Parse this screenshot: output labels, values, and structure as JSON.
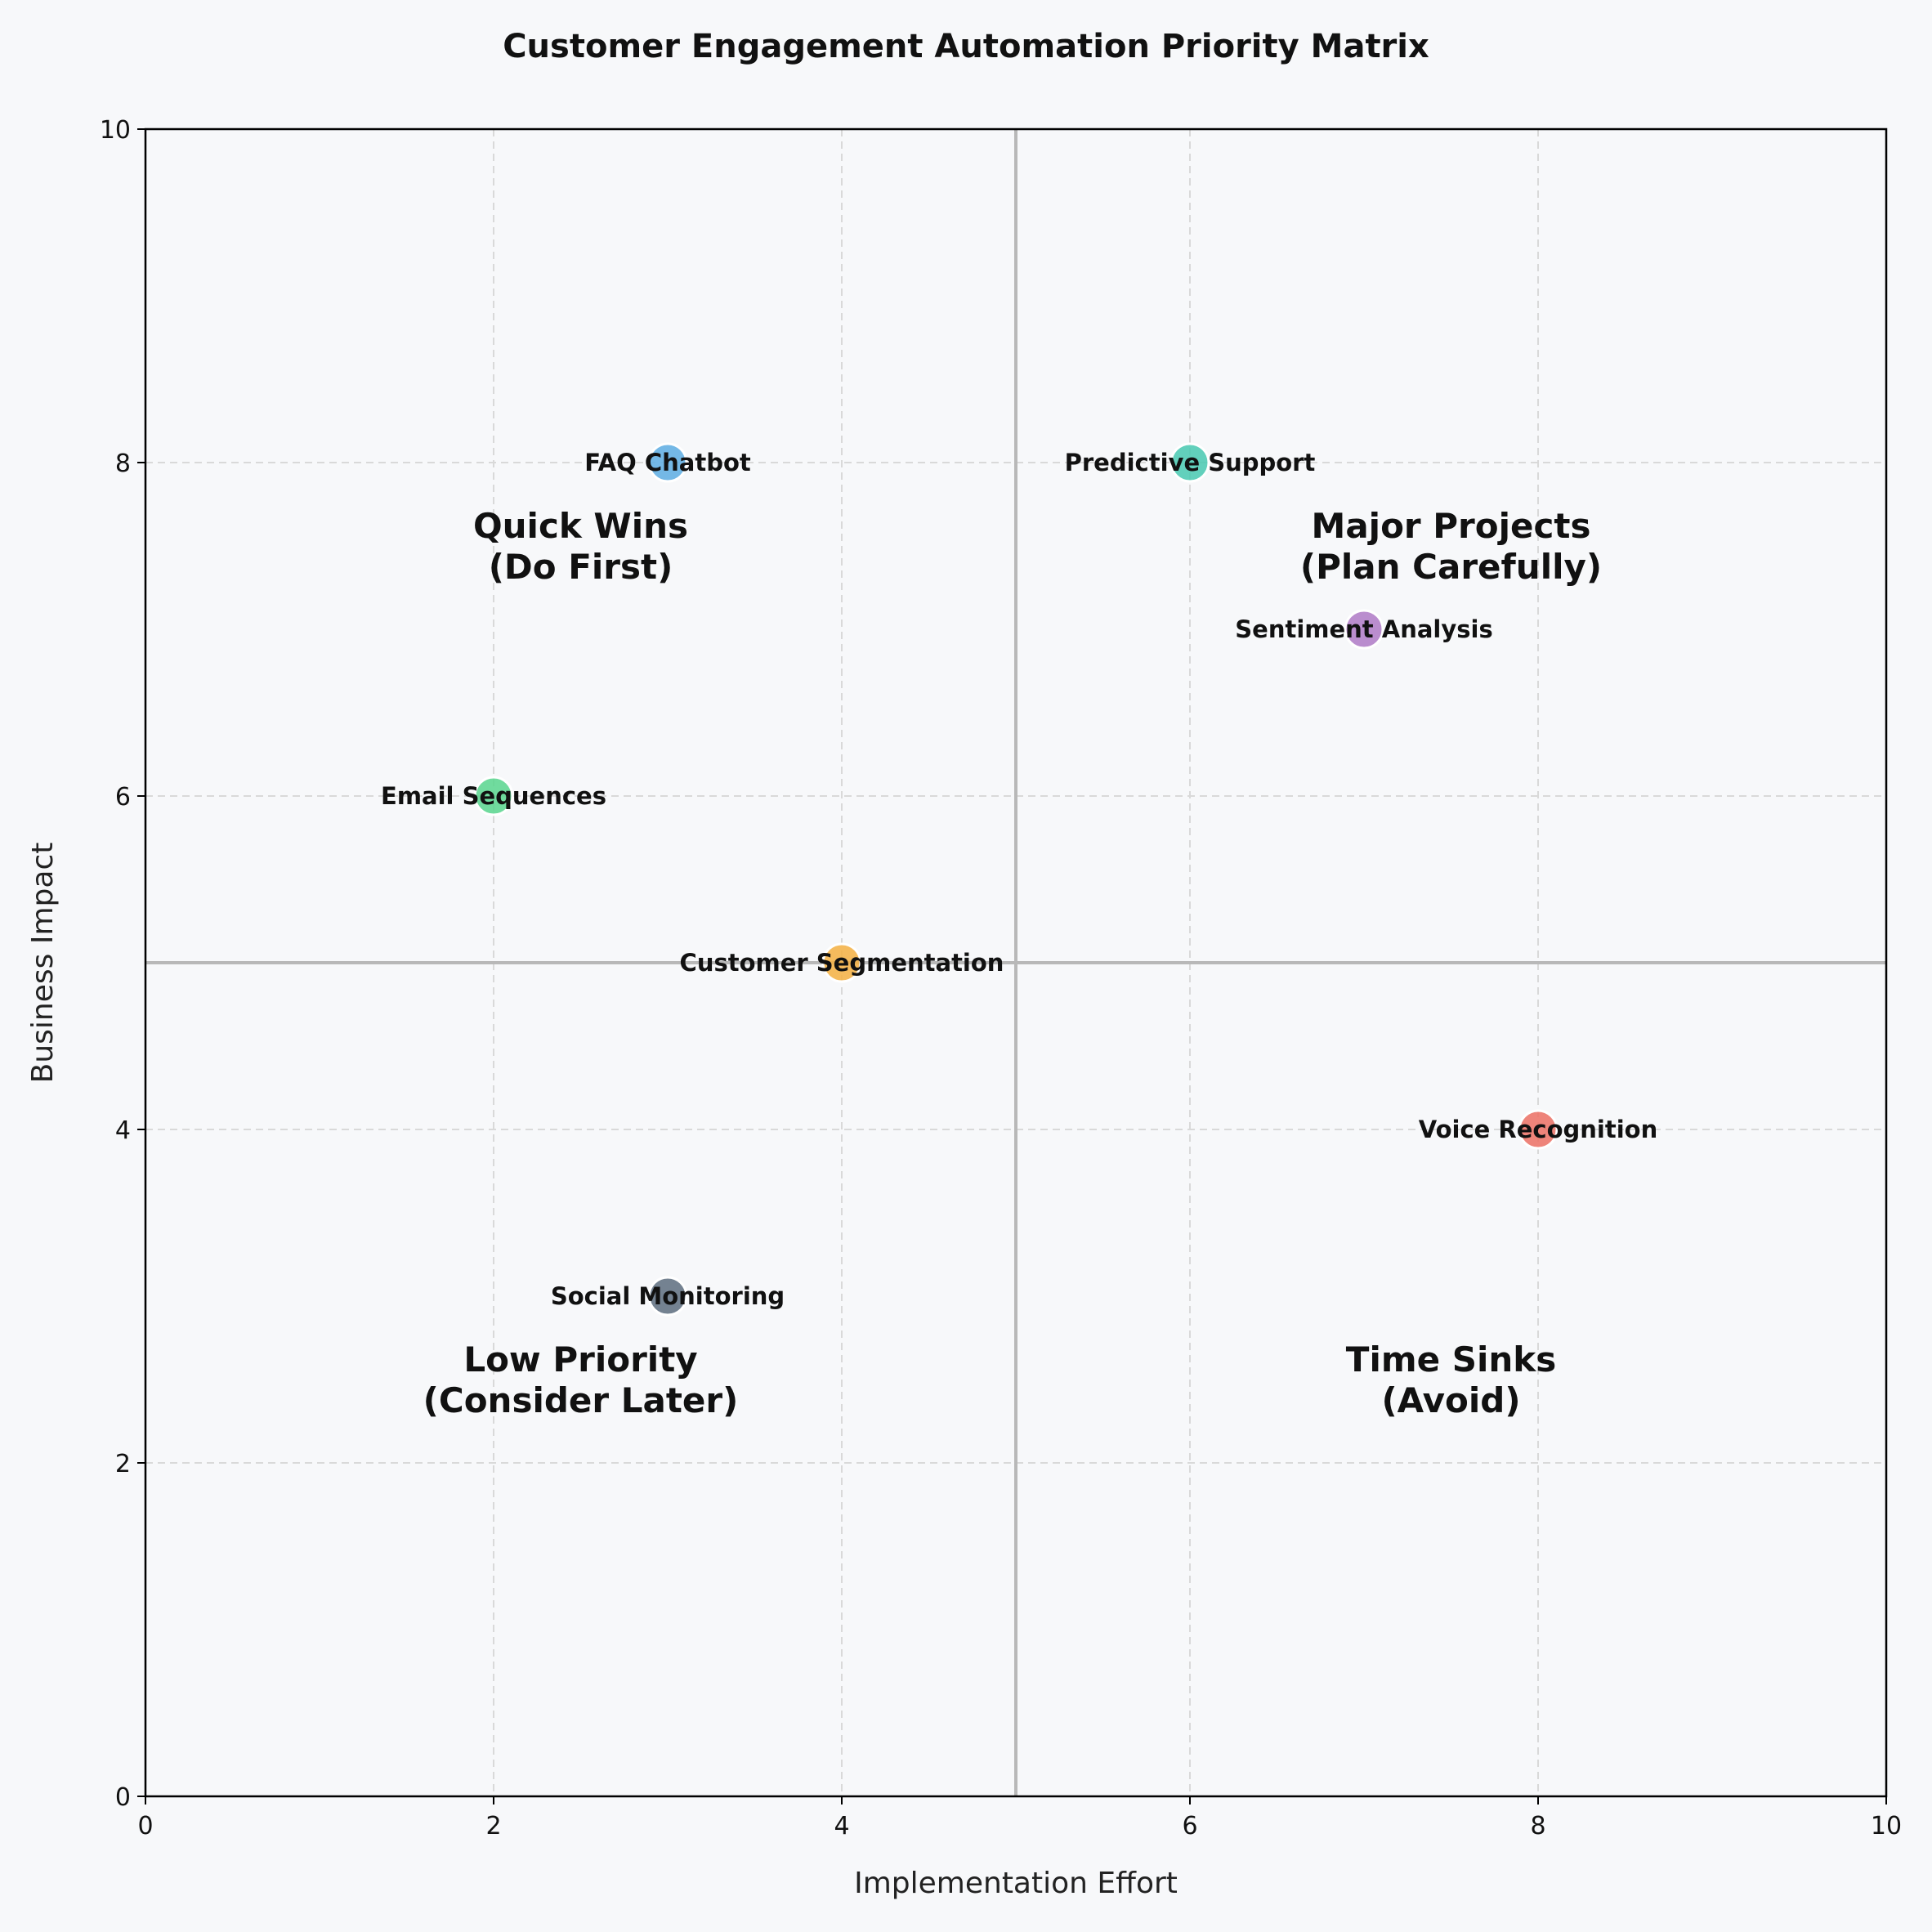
{
  "chart_data": {
    "type": "scatter",
    "title": "Customer Engagement Automation Priority Matrix",
    "xlabel": "Implementation Effort",
    "ylabel": "Business Impact",
    "xlim": [
      0,
      10
    ],
    "ylim": [
      0,
      10
    ],
    "xticks": [
      "0",
      "2",
      "4",
      "6",
      "8",
      "10"
    ],
    "yticks": [
      "0",
      "2",
      "4",
      "6",
      "8",
      "10"
    ],
    "grid": true,
    "dividers": {
      "x": 5,
      "y": 5
    },
    "points": [
      {
        "label": "FAQ Chatbot",
        "x": 3,
        "y": 8,
        "color": "#5dade2"
      },
      {
        "label": "Predictive Support",
        "x": 6,
        "y": 8,
        "color": "#48c9b0"
      },
      {
        "label": "Sentiment Analysis",
        "x": 7,
        "y": 7,
        "color": "#af7ac5"
      },
      {
        "label": "Email Sequences",
        "x": 2,
        "y": 6,
        "color": "#58d68d"
      },
      {
        "label": "Customer Segmentation",
        "x": 4,
        "y": 5,
        "color": "#f5b041"
      },
      {
        "label": "Voice Recognition",
        "x": 8,
        "y": 4,
        "color": "#ec7063"
      },
      {
        "label": "Social Monitoring",
        "x": 3,
        "y": 3,
        "color": "#5d6d7e"
      }
    ],
    "quadrants": [
      {
        "line1": "Quick Wins",
        "line2": "(Do First)",
        "x": 2.5,
        "y": 7.5
      },
      {
        "line1": "Major Projects",
        "line2": "(Plan Carefully)",
        "x": 7.5,
        "y": 7.5
      },
      {
        "line1": "Low Priority",
        "line2": "(Consider Later)",
        "x": 2.5,
        "y": 2.5
      },
      {
        "line1": "Time Sinks",
        "line2": "(Avoid)",
        "x": 7.5,
        "y": 2.5
      }
    ]
  }
}
